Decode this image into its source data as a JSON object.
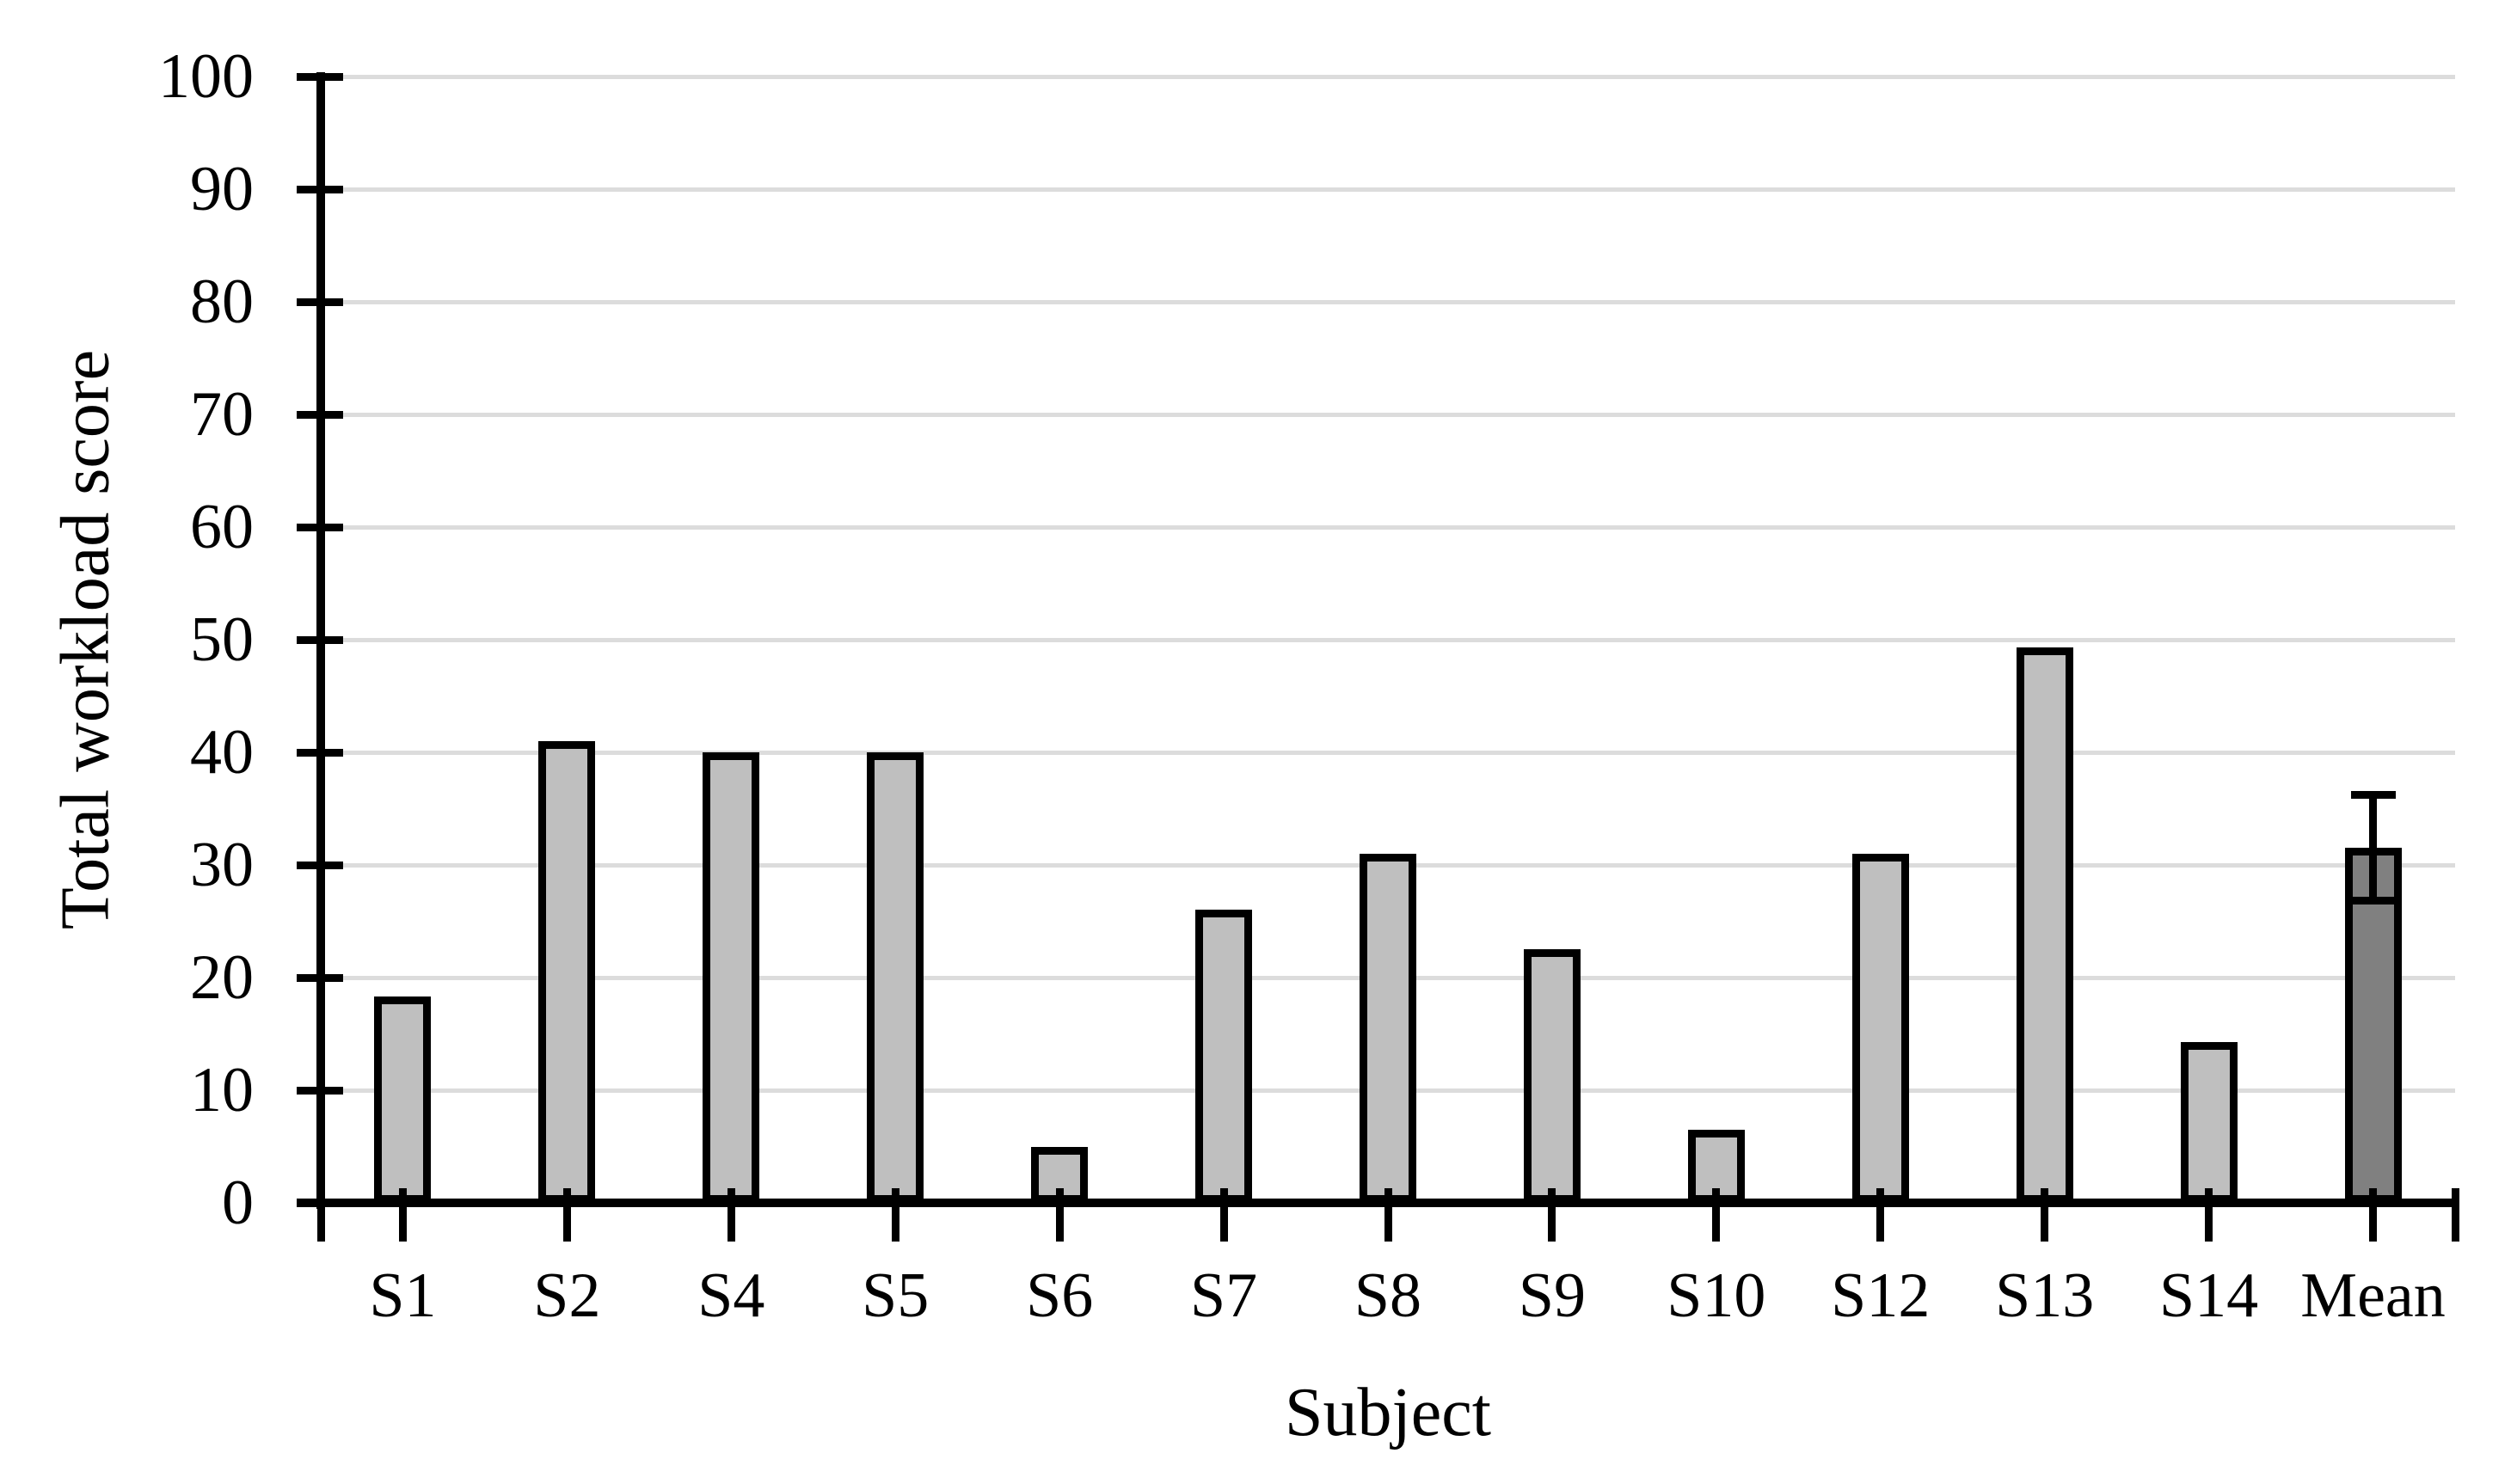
{
  "chart_data": {
    "type": "bar",
    "title": "",
    "xlabel": "Subject",
    "ylabel": "Total workload score",
    "categories": [
      "S1",
      "S2",
      "S4",
      "S5",
      "S6",
      "S7",
      "S8",
      "S9",
      "S10",
      "S12",
      "S13",
      "S14",
      "Mean"
    ],
    "values": [
      18.3,
      41,
      40,
      40,
      5,
      26,
      31,
      22.5,
      6.5,
      31,
      49.3,
      14.3,
      31.5
    ],
    "error_bar": {
      "category": "Mean",
      "center": 31.5,
      "plus": 4.7,
      "minus": 4.7
    },
    "ylim": [
      0,
      100
    ],
    "yticks": [
      0,
      10,
      20,
      30,
      40,
      50,
      60,
      70,
      80,
      90,
      100
    ],
    "grid": "horizontal",
    "legend": "none",
    "colors": {
      "bar_fill": "#bfbfbf",
      "mean_bar_fill": "#808080",
      "bar_border": "#000000",
      "gridline": "#dcdcdc",
      "axis": "#000000",
      "text": "#000000",
      "background": "#ffffff"
    }
  }
}
